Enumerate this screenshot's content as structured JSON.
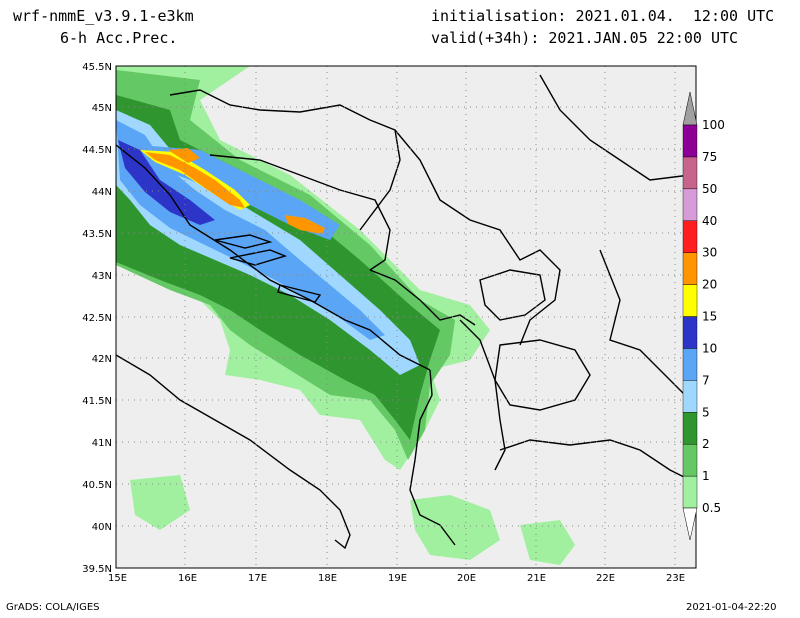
{
  "header": {
    "model": "wrf-nmmE_v3.9.1-e3km",
    "field": "6-h Acc.Prec.",
    "init": "initialisation: 2021.01.04.  12:00 UTC",
    "valid": "valid(+34h): 2021.JAN.05 22:00 UTC"
  },
  "footer": {
    "credit": "GrADS: COLA/IGES",
    "timestamp": "2021-01-04-22:20"
  },
  "map": {
    "lon_labels": [
      "15E",
      "16E",
      "17E",
      "18E",
      "19E",
      "20E",
      "21E",
      "22E",
      "23E"
    ],
    "lat_labels": [
      "45.5N",
      "45N",
      "44.5N",
      "44N",
      "43.5N",
      "43N",
      "42.5N",
      "42N",
      "41.5N",
      "41N",
      "40.5N",
      "40N",
      "39.5N"
    ],
    "background_color": "#eeeeee",
    "grid": "dotted"
  },
  "colorbar": {
    "levels": [
      "0.5",
      "1",
      "2",
      "5",
      "7",
      "10",
      "15",
      "20",
      "30",
      "40",
      "50",
      "75",
      "100"
    ],
    "colors": [
      "#a0f0a0",
      "#64c864",
      "#2f962f",
      "#9fd7ff",
      "#5aa5f5",
      "#2d35c8",
      "#ffff00",
      "#ff9600",
      "#ff1e1e",
      "#d79bd7",
      "#c8648c",
      "#8c0096",
      "#a0a0a0"
    ],
    "units_note": ""
  }
}
